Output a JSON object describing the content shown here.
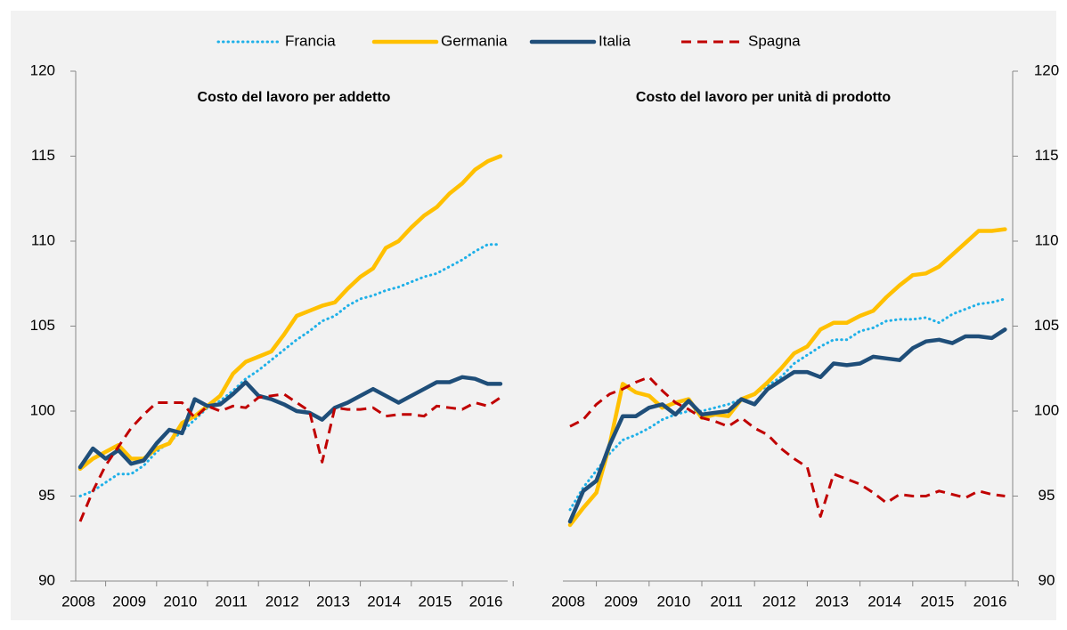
{
  "chart_data": [
    {
      "type": "line",
      "title": "Costo del lavoro per addetto",
      "yaxis_side": "left",
      "categories": [
        "2008",
        null,
        null,
        null,
        "2009",
        null,
        null,
        null,
        "2010",
        null,
        null,
        null,
        "2011",
        null,
        null,
        null,
        "2012",
        null,
        null,
        null,
        "2013",
        null,
        null,
        null,
        "2014",
        null,
        null,
        null,
        "2015",
        null,
        null,
        null,
        "2016",
        null
      ],
      "ylim": [
        90,
        120
      ],
      "yticks": [
        90,
        95,
        100,
        105,
        110,
        115,
        120
      ],
      "series": [
        {
          "name": "Francia",
          "color": "#1fb0e8",
          "style": "dotted",
          "values": [
            95.0,
            95.3,
            95.8,
            96.3,
            96.3,
            96.8,
            97.6,
            98.2,
            98.8,
            99.5,
            100.2,
            100.6,
            101.2,
            101.9,
            102.4,
            103.0,
            103.6,
            104.2,
            104.7,
            105.3,
            105.6,
            106.2,
            106.6,
            106.8,
            107.1,
            107.3,
            107.6,
            107.9,
            108.1,
            108.5,
            108.9,
            109.4,
            109.8,
            109.8
          ]
        },
        {
          "name": "Germania",
          "color": "#ffc000",
          "style": "solid",
          "values": [
            96.6,
            97.2,
            97.6,
            98.0,
            97.2,
            97.2,
            97.8,
            98.1,
            99.3,
            99.7,
            100.3,
            100.9,
            102.2,
            102.9,
            103.2,
            103.5,
            104.5,
            105.6,
            105.9,
            106.2,
            106.4,
            107.2,
            107.9,
            108.4,
            109.6,
            110.0,
            110.8,
            111.5,
            112.0,
            112.8,
            113.4,
            114.2,
            114.7,
            115.0
          ]
        },
        {
          "name": "Italia",
          "color": "#1f4e79",
          "style": "solid",
          "values": [
            96.7,
            97.8,
            97.2,
            97.7,
            96.9,
            97.1,
            98.1,
            98.9,
            98.7,
            100.7,
            100.3,
            100.4,
            101.0,
            101.7,
            100.9,
            100.7,
            100.4,
            100.0,
            99.9,
            99.5,
            100.2,
            100.5,
            100.9,
            101.3,
            100.9,
            100.5,
            100.9,
            101.3,
            101.7,
            101.7,
            102.0,
            101.9,
            101.6,
            101.6
          ]
        },
        {
          "name": "Spagna",
          "color": "#c00000",
          "style": "dashed",
          "values": [
            93.5,
            95.3,
            96.8,
            97.9,
            99.0,
            99.8,
            100.5,
            100.5,
            100.5,
            99.6,
            100.3,
            100.0,
            100.3,
            100.2,
            100.8,
            100.9,
            101.0,
            100.5,
            100.0,
            97.0,
            100.2,
            100.1,
            100.1,
            100.2,
            99.7,
            99.8,
            99.8,
            99.7,
            100.3,
            100.2,
            100.1,
            100.5,
            100.3,
            100.8
          ]
        }
      ]
    },
    {
      "type": "line",
      "title": "Costo del lavoro per unità di prodotto",
      "yaxis_side": "right",
      "categories": [
        "2008",
        null,
        null,
        null,
        "2009",
        null,
        null,
        null,
        "2010",
        null,
        null,
        null,
        "2011",
        null,
        null,
        null,
        "2012",
        null,
        null,
        null,
        "2013",
        null,
        null,
        null,
        "2014",
        null,
        null,
        null,
        "2015",
        null,
        null,
        null,
        "2016",
        null
      ],
      "ylim": [
        90,
        120
      ],
      "yticks": [
        90,
        95,
        100,
        105,
        110,
        115,
        120
      ],
      "series": [
        {
          "color": "#1fb0e8",
          "style": "dotted",
          "values": [
            94.2,
            95.5,
            96.5,
            97.5,
            98.3,
            98.6,
            99.0,
            99.5,
            99.8,
            100.0,
            100.0,
            100.2,
            100.4,
            100.7,
            101.0,
            101.5,
            102.0,
            102.8,
            103.3,
            103.8,
            104.2,
            104.2,
            104.7,
            104.9,
            105.3,
            105.4,
            105.4,
            105.5,
            105.2,
            105.7,
            106.0,
            106.3,
            106.4,
            106.6
          ]
        },
        {
          "color": "#ffc000",
          "style": "solid",
          "values": [
            93.3,
            94.3,
            95.2,
            98.0,
            101.6,
            101.1,
            100.9,
            100.2,
            100.5,
            100.7,
            99.6,
            99.8,
            99.7,
            100.7,
            101.0,
            101.7,
            102.5,
            103.4,
            103.8,
            104.8,
            105.2,
            105.2,
            105.6,
            105.9,
            106.7,
            107.4,
            108.0,
            108.1,
            108.5,
            109.2,
            109.9,
            110.6,
            110.6,
            110.7
          ]
        },
        {
          "color": "#1f4e79",
          "style": "solid",
          "values": [
            93.5,
            95.3,
            95.9,
            98.0,
            99.7,
            99.7,
            100.2,
            100.4,
            99.8,
            100.6,
            99.8,
            99.9,
            100.0,
            100.7,
            100.4,
            101.3,
            101.8,
            102.3,
            102.3,
            102.0,
            102.8,
            102.7,
            102.8,
            103.2,
            103.1,
            103.0,
            103.7,
            104.1,
            104.2,
            104.0,
            104.4,
            104.4,
            104.3,
            104.8
          ]
        },
        {
          "color": "#c00000",
          "style": "dashed",
          "values": [
            99.1,
            99.5,
            100.4,
            101.0,
            101.3,
            101.7,
            102.0,
            101.2,
            100.5,
            100.1,
            99.6,
            99.4,
            99.1,
            99.6,
            99.0,
            98.6,
            97.8,
            97.2,
            96.7,
            93.8,
            96.3,
            96.0,
            95.7,
            95.2,
            94.6,
            95.1,
            95.0,
            95.0,
            95.3,
            95.1,
            94.9,
            95.3,
            95.1,
            95.0
          ]
        }
      ]
    }
  ]
}
